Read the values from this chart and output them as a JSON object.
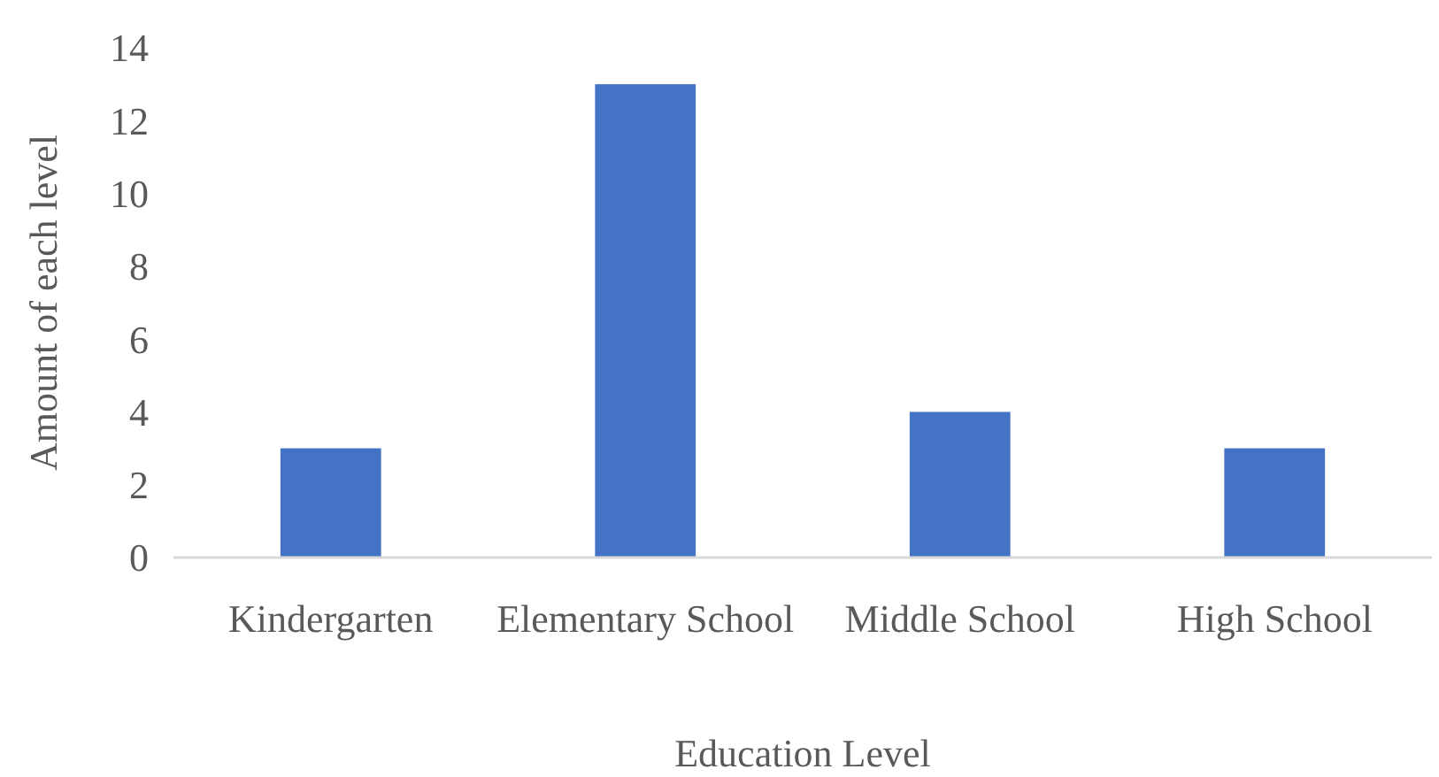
{
  "chart_data": {
    "type": "bar",
    "xlabel": "Education Level",
    "ylabel": "Amount of each level",
    "categories": [
      "Kindergarten",
      "Elementary School",
      "Middle School",
      "High School"
    ],
    "values": [
      3,
      13,
      4,
      3
    ],
    "color": "#4472c4",
    "ylim": [
      0,
      14
    ],
    "yticks": [
      0,
      2,
      4,
      6,
      8,
      10,
      12,
      14
    ],
    "grid": false
  }
}
